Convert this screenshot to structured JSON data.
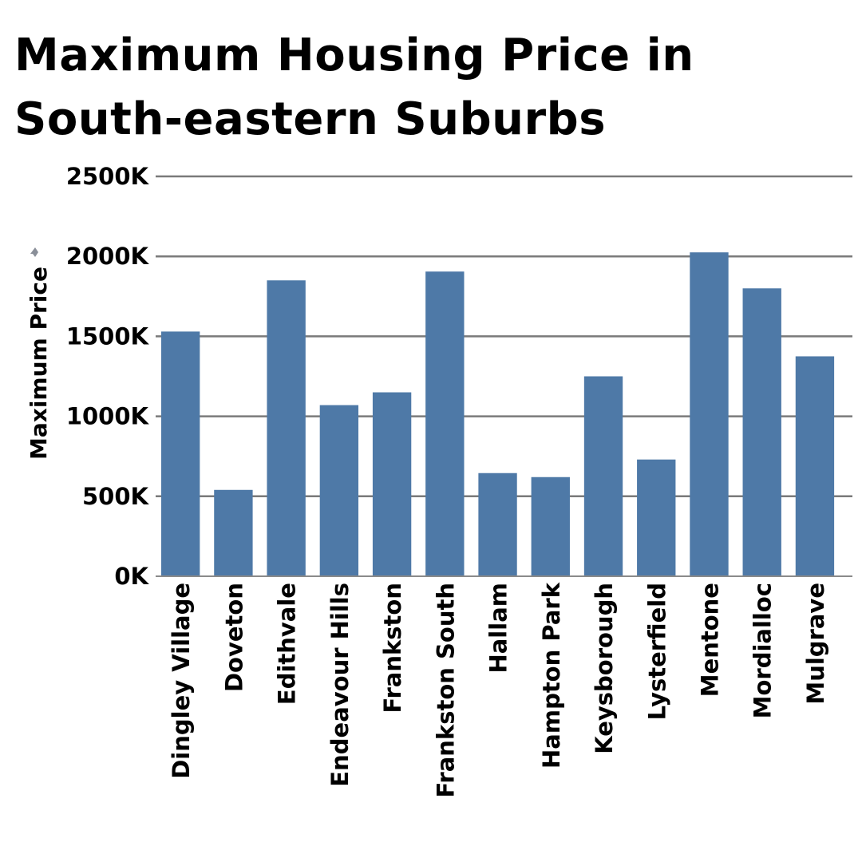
{
  "chart_data": {
    "type": "bar",
    "title": "Maximum Housing Price in South-eastern Suburbs",
    "xlabel": "",
    "ylabel": "Maximum Price",
    "categories": [
      "Dingley Village",
      "Doveton",
      "Edithvale",
      "Endeavour Hills",
      "Frankston",
      "Frankston South",
      "Hallam",
      "Hampton Park",
      "Keysborough",
      "Lysterfield",
      "Mentone",
      "Mordialloc",
      "Mulgrave"
    ],
    "values": [
      1530000,
      540000,
      1850000,
      1070000,
      1150000,
      1905000,
      645000,
      620000,
      1250000,
      730000,
      2025000,
      1800000,
      1375000
    ],
    "ylim": [
      0,
      2500000
    ],
    "yticks": [
      0,
      500000,
      1000000,
      1500000,
      2000000,
      2500000
    ],
    "ytick_labels": [
      "0K",
      "500K",
      "1000K",
      "1500K",
      "2000K",
      "2500K"
    ],
    "grid": true,
    "colors": {
      "bar": "#4e79a7"
    }
  }
}
